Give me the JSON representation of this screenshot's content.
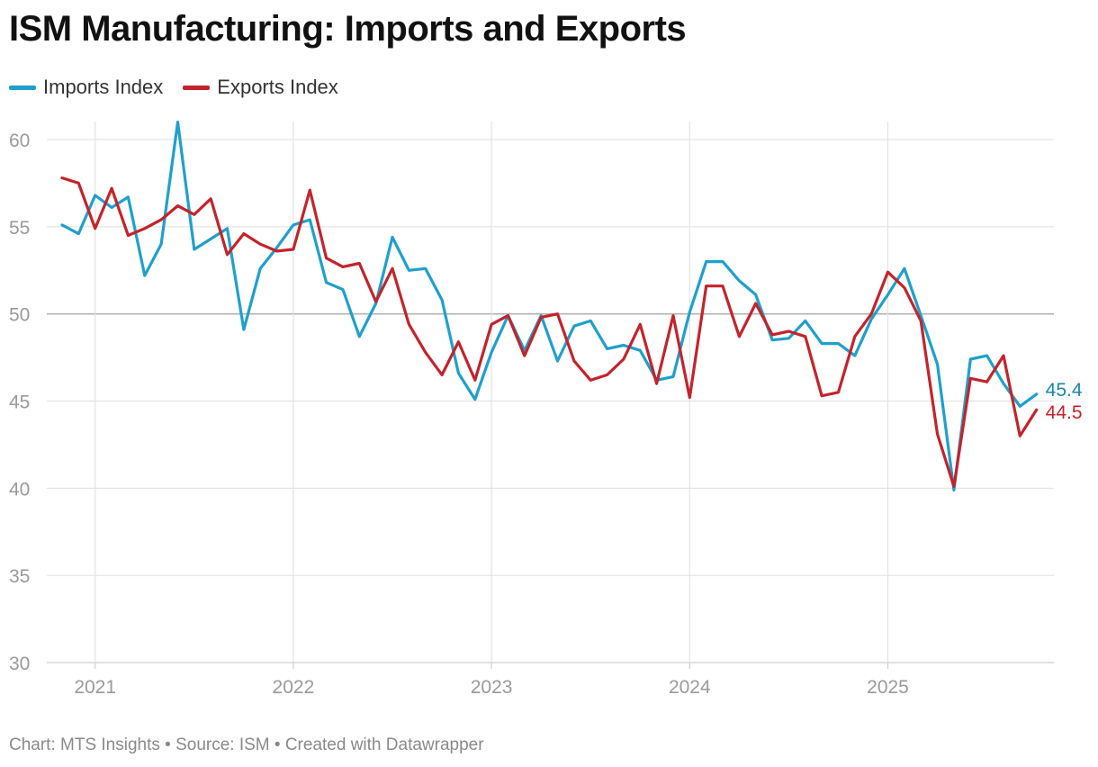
{
  "chart_data": {
    "type": "line",
    "title": "ISM Manufacturing: Imports and Exports",
    "xlabel": "",
    "ylabel": "",
    "x_start": "2020-11",
    "frequency": "monthly",
    "x_ticks": [
      "2021",
      "2022",
      "2023",
      "2024",
      "2025"
    ],
    "ylim": [
      30,
      60
    ],
    "yticks": [
      60,
      55,
      50,
      45,
      40,
      35,
      30
    ],
    "grid": true,
    "legend_position": "top-left",
    "series": [
      {
        "name": "Imports Index",
        "color": "#1fa0cc",
        "label_color": "#1a87ad",
        "end_label": "45.4",
        "values": [
          55.1,
          54.6,
          56.8,
          56.1,
          56.7,
          52.2,
          54.0,
          61.0,
          53.7,
          54.3,
          54.9,
          49.1,
          52.6,
          53.8,
          55.1,
          55.4,
          51.8,
          51.4,
          48.7,
          50.6,
          54.4,
          52.5,
          52.6,
          50.8,
          46.6,
          45.1,
          47.8,
          49.9,
          47.9,
          49.9,
          47.3,
          49.3,
          49.6,
          48.0,
          48.2,
          47.9,
          46.2,
          46.4,
          50.1,
          53.0,
          53.0,
          51.9,
          51.1,
          48.5,
          48.6,
          49.6,
          48.3,
          48.3,
          47.6,
          49.7,
          51.1,
          52.6,
          49.9,
          47.1,
          39.9,
          47.4,
          47.6,
          46.0,
          44.7,
          45.4
        ]
      },
      {
        "name": "Exports Index",
        "color": "#c4232b",
        "label_color": "#c4232b",
        "end_label": "44.5",
        "values": [
          57.8,
          57.5,
          54.9,
          57.2,
          54.5,
          54.9,
          55.4,
          56.2,
          55.7,
          56.6,
          53.4,
          54.6,
          54.0,
          53.6,
          53.7,
          57.1,
          53.2,
          52.7,
          52.9,
          50.7,
          52.6,
          49.4,
          47.8,
          46.5,
          48.4,
          46.2,
          49.4,
          49.9,
          47.6,
          49.8,
          50.0,
          47.3,
          46.2,
          46.5,
          47.4,
          49.4,
          46.0,
          49.9,
          45.2,
          51.6,
          51.6,
          48.7,
          50.6,
          48.8,
          49.0,
          48.7,
          45.3,
          45.5,
          48.7,
          50.0,
          52.4,
          51.5,
          49.6,
          43.1,
          40.1,
          46.3,
          46.1,
          47.6,
          43.0,
          44.5
        ]
      }
    ]
  },
  "footer": {
    "text": "Chart: MTS Insights • Source: ISM • Created with Datawrapper"
  }
}
